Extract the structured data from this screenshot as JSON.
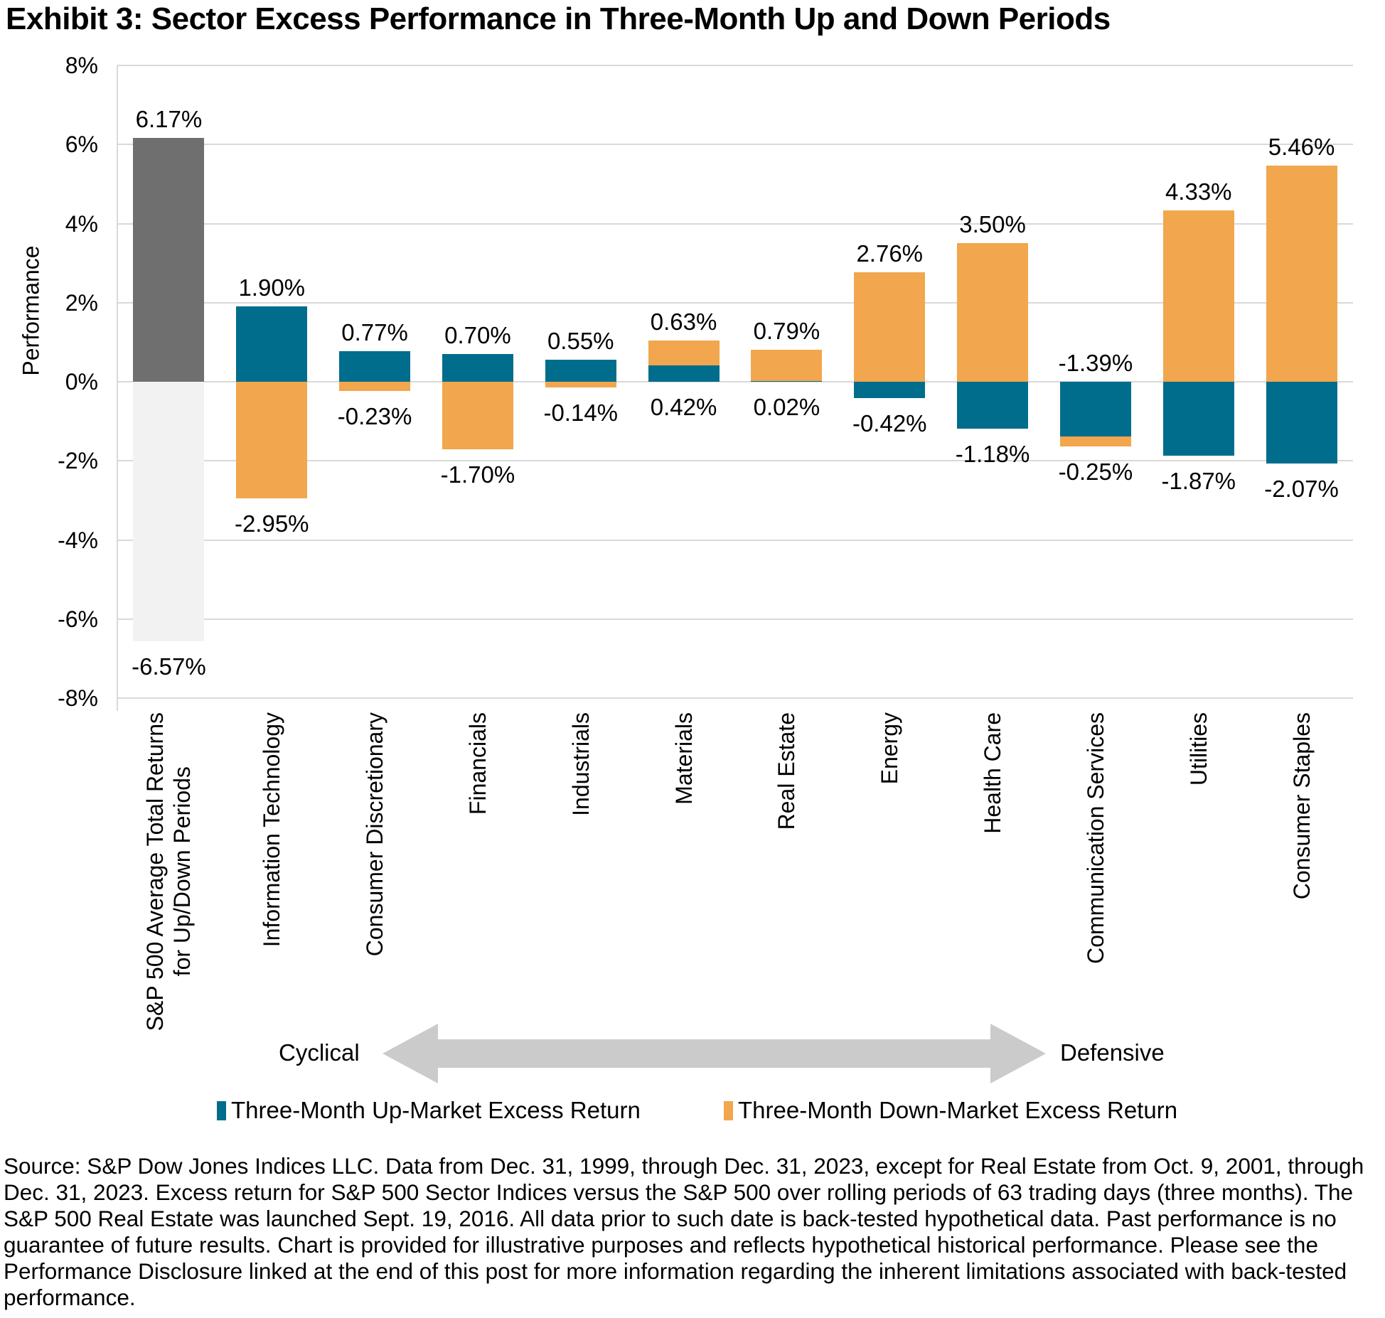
{
  "title": "Exhibit 3: Sector Excess Performance in Three-Month Up and Down Periods",
  "chart_data": {
    "type": "bar",
    "stacked": true,
    "title": "Exhibit 3: Sector Excess Performance in Three-Month Up and Down Periods",
    "xlabel": "",
    "ylabel": "Performance",
    "ylim": [
      -8,
      8
    ],
    "ytick_step": 2,
    "ytick_labels": [
      "8%",
      "6%",
      "4%",
      "2%",
      "0%",
      "-2%",
      "-4%",
      "-6%",
      "-8%"
    ],
    "grid": "horizontal",
    "legend_position": "bottom",
    "series_names": [
      "Three-Month Up-Market Excess Return",
      "Three-Month Down-Market Excess Return"
    ],
    "colors": {
      "up": "#006D8C",
      "down": "#F2A64D"
    },
    "categories": [
      {
        "label": "S&P 500 Average Total Returns\nfor Up/Down Periods",
        "up": 6.17,
        "up_label": "6.17%",
        "down": -6.57,
        "down_label": "-6.57%",
        "up_color": "#6F6F6F",
        "down_color": "#F2F2F2"
      },
      {
        "label": "Information Technology",
        "up": 1.9,
        "up_label": "1.90%",
        "down": -2.95,
        "down_label": "-2.95%"
      },
      {
        "label": "Consumer Discretionary",
        "up": 0.77,
        "up_label": "0.77%",
        "down": -0.23,
        "down_label": "-0.23%"
      },
      {
        "label": "Financials",
        "up": 0.7,
        "up_label": "0.70%",
        "down": -1.7,
        "down_label": "-1.70%"
      },
      {
        "label": "Industrials",
        "up": 0.55,
        "up_label": "0.55%",
        "down": -0.14,
        "down_label": "-0.14%"
      },
      {
        "label": "Materials",
        "up": 0.42,
        "up_label": "0.42%",
        "down": 0.63,
        "down_label": "0.63%"
      },
      {
        "label": "Real Estate",
        "up": 0.02,
        "up_label": "0.02%",
        "down": 0.79,
        "down_label": "0.79%"
      },
      {
        "label": "Energy",
        "up": -0.42,
        "up_label": "-0.42%",
        "down": 2.76,
        "down_label": "2.76%"
      },
      {
        "label": "Health Care",
        "up": -1.18,
        "up_label": "-1.18%",
        "down": 3.5,
        "down_label": "3.50%"
      },
      {
        "label": "Communication Services",
        "up": -1.39,
        "up_label": "-1.39%",
        "down": -0.25,
        "down_label": "-0.25%"
      },
      {
        "label": "Utilities",
        "up": -1.87,
        "up_label": "-1.87%",
        "down": 4.33,
        "down_label": "4.33%"
      },
      {
        "label": "Consumer Staples",
        "up": -2.07,
        "up_label": "-2.07%",
        "down": 5.46,
        "down_label": "5.46%"
      }
    ]
  },
  "annotations": {
    "left": "Cyclical",
    "right": "Defensive",
    "arrow_color": "#CBCBCB"
  },
  "legend": [
    {
      "label": "Three-Month Up-Market Excess Return",
      "color": "#006D8C"
    },
    {
      "label": "Three-Month Down-Market Excess Return",
      "color": "#F2A64D"
    }
  ],
  "source_text": "Source: S&P Dow Jones Indices LLC. Data from Dec. 31, 1999, through Dec. 31, 2023, except for Real Estate from Oct. 9, 2001, through Dec. 31, 2023. Excess return for S&P 500 Sector Indices versus the S&P 500 over rolling periods of 63 trading days (three months). The S&P 500 Real Estate was launched Sept. 19, 2016. All data prior to such date is back-tested hypothetical data. Past performance is no guarantee of future results. Chart is provided for illustrative purposes and reflects hypothetical historical performance. Please see the Performance Disclosure linked at the end of this post for more information regarding the inherent limitations associated with back-tested performance."
}
